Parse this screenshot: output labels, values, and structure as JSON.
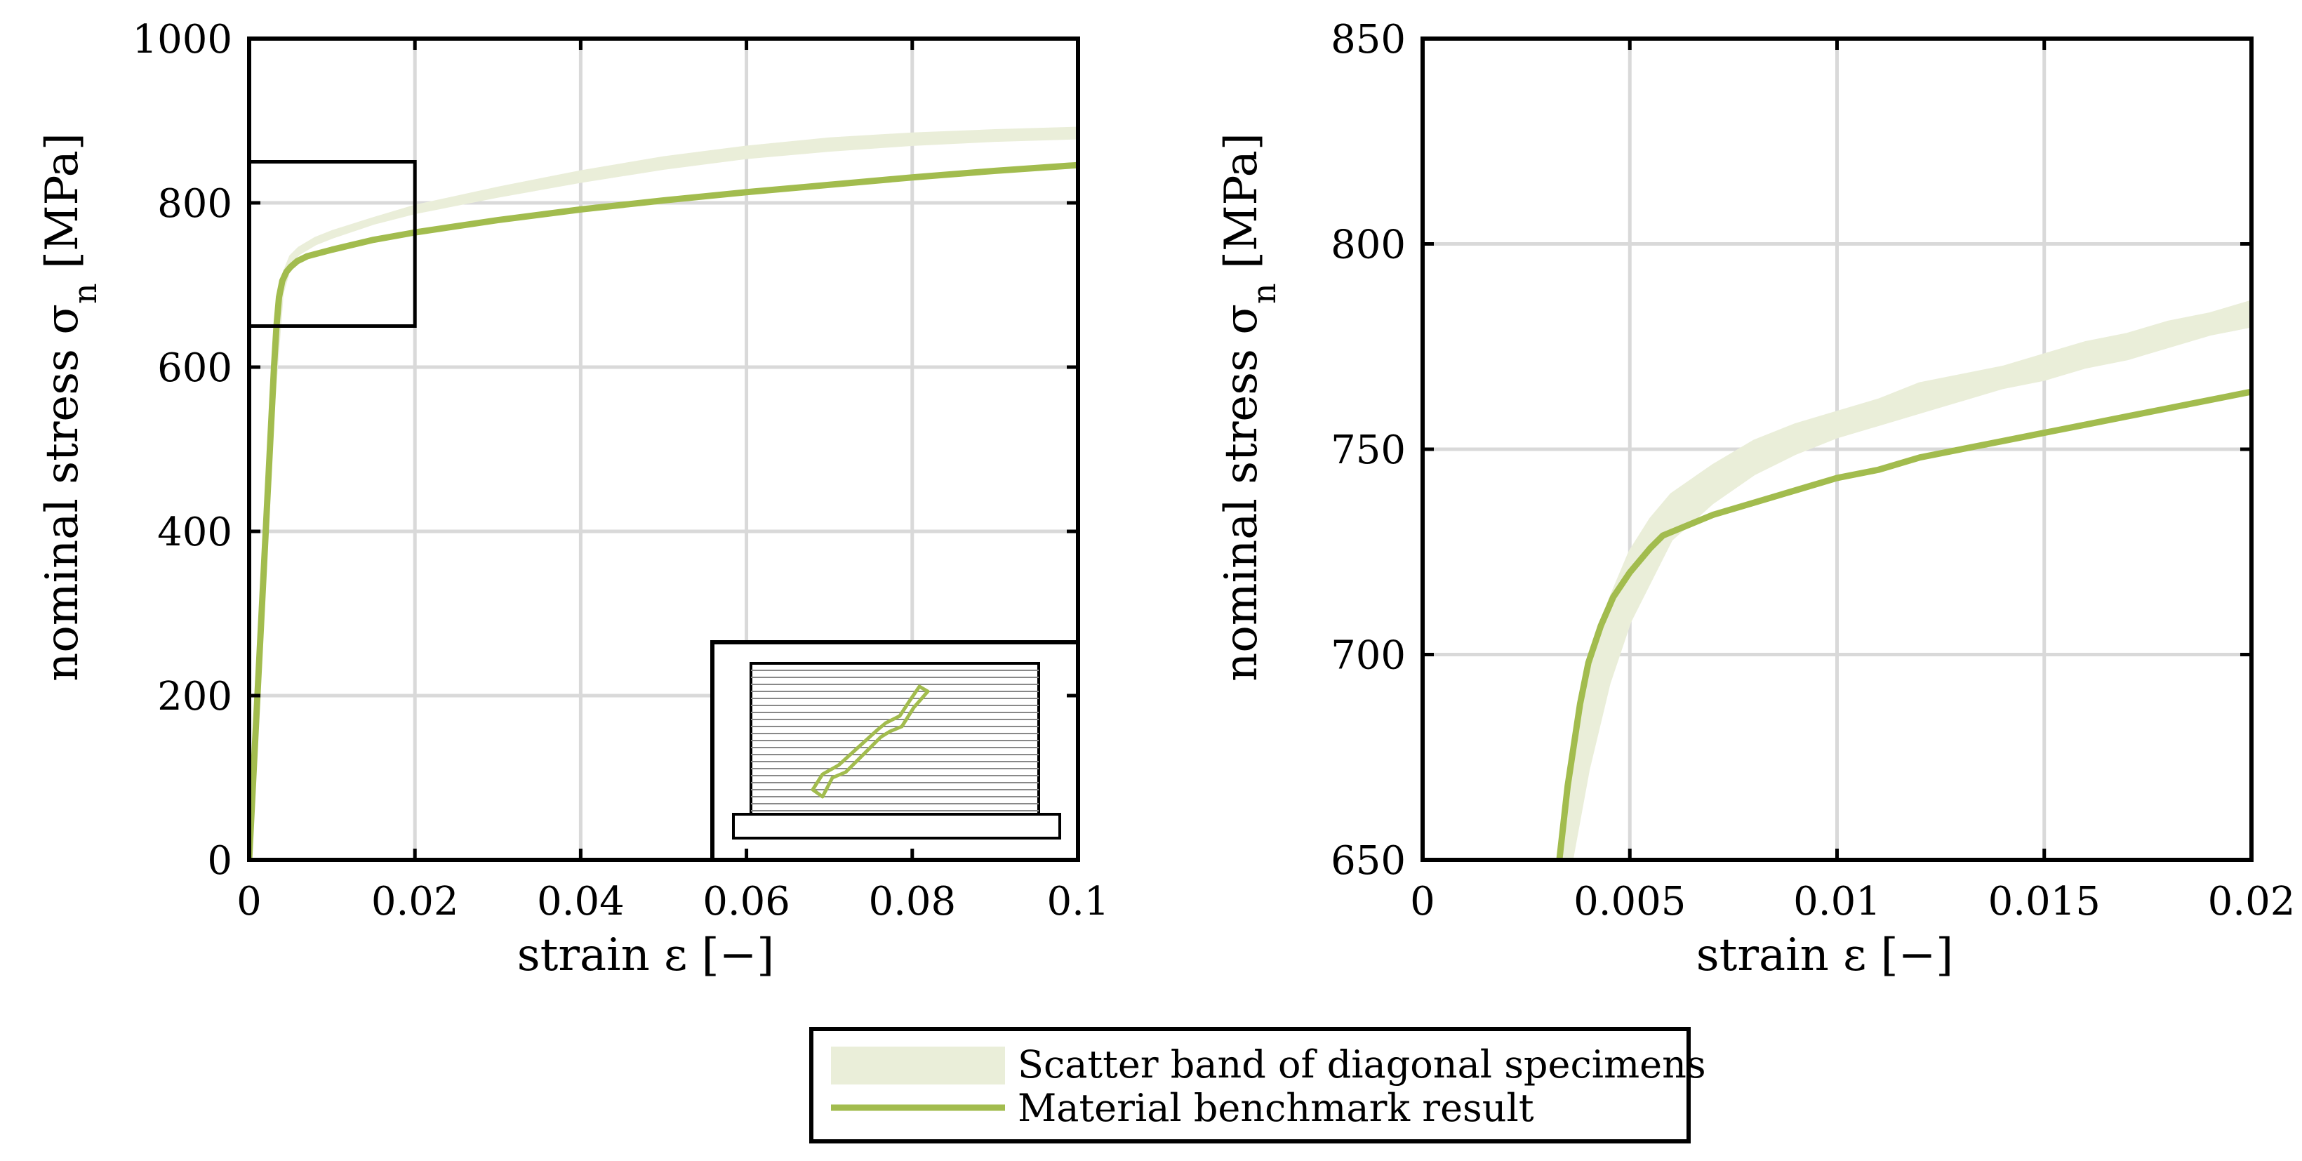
{
  "colors": {
    "series_line": "#a2bc4e",
    "scatter_band": "#eaeed9",
    "grid": "#d9d9d9",
    "axes": "#000000"
  },
  "chart_data": [
    {
      "type": "line",
      "xlabel": "strain ε [−]",
      "ylabel": "nominal stress σn [MPa]",
      "xlim": [
        0,
        0.1
      ],
      "ylim": [
        0,
        1000
      ],
      "xticks": [
        0,
        0.02,
        0.04,
        0.06,
        0.08,
        0.1
      ],
      "xtick_labels": [
        "0",
        "0.02",
        "0.04",
        "0.06",
        "0.08",
        "0.1"
      ],
      "yticks": [
        0,
        200,
        400,
        600,
        800,
        1000
      ],
      "ytick_labels": [
        "0",
        "200",
        "400",
        "600",
        "800",
        "1000"
      ],
      "grid": true,
      "zoom_box": {
        "x": [
          0,
          0.02
        ],
        "y": [
          650,
          850
        ]
      },
      "inset": "specimen-sketch",
      "series": [
        {
          "name": "Scatter band of diagonal specimens",
          "kind": "band",
          "x": [
            0,
            0.001,
            0.002,
            0.003,
            0.004,
            0.005,
            0.006,
            0.008,
            0.01,
            0.015,
            0.02,
            0.03,
            0.04,
            0.05,
            0.06,
            0.07,
            0.08,
            0.09,
            0.1
          ],
          "lower": [
            0,
            180,
            370,
            560,
            690,
            725,
            738,
            750,
            758,
            775,
            788,
            808,
            826,
            842,
            855,
            864,
            871,
            876,
            879
          ],
          "upper": [
            0,
            210,
            410,
            610,
            710,
            735,
            745,
            757,
            765,
            781,
            796,
            818,
            838,
            855,
            868,
            878,
            884,
            888,
            891
          ]
        },
        {
          "name": "Material benchmark result",
          "kind": "line",
          "x": [
            0,
            0.001,
            0.002,
            0.003,
            0.0033,
            0.0036,
            0.004,
            0.0045,
            0.005,
            0.0058,
            0.007,
            0.01,
            0.015,
            0.02,
            0.03,
            0.04,
            0.05,
            0.06,
            0.07,
            0.08,
            0.09,
            0.1
          ],
          "y": [
            0,
            200,
            400,
            600,
            650,
            685,
            705,
            716,
            722,
            729,
            735,
            743,
            755,
            764,
            779,
            792,
            803,
            813,
            822,
            831,
            839,
            846
          ]
        }
      ]
    },
    {
      "type": "line",
      "xlabel": "strain ε [−]",
      "ylabel": "nominal stress σn [MPa]",
      "xlim": [
        0,
        0.02
      ],
      "ylim": [
        650,
        850
      ],
      "xticks": [
        0,
        0.005,
        0.01,
        0.015,
        0.02
      ],
      "xtick_labels": [
        "0",
        "0.005",
        "0.01",
        "0.015",
        "0.02"
      ],
      "yticks": [
        650,
        700,
        750,
        800,
        850
      ],
      "ytick_labels": [
        "650",
        "700",
        "750",
        "800",
        "850"
      ],
      "grid": true,
      "series": [
        {
          "name": "Scatter band of diagonal specimens",
          "kind": "band",
          "x": [
            0.0034,
            0.0036,
            0.004,
            0.0045,
            0.005,
            0.0055,
            0.006,
            0.007,
            0.008,
            0.009,
            0.01,
            0.011,
            0.012,
            0.013,
            0.014,
            0.015,
            0.016,
            0.017,
            0.018,
            0.019,
            0.02
          ],
          "lower": [
            650,
            650,
            672,
            693,
            708,
            718,
            728,
            737,
            744,
            749,
            753,
            756,
            759,
            762,
            765,
            767,
            770,
            772,
            775,
            778,
            780
          ],
          "upper": [
            650,
            676,
            697,
            713,
            725,
            733,
            739,
            746,
            752,
            756,
            759,
            762,
            766,
            768,
            770,
            773,
            776,
            778,
            781,
            783,
            786
          ]
        },
        {
          "name": "Material benchmark result",
          "kind": "line",
          "x": [
            0.0033,
            0.0035,
            0.0038,
            0.004,
            0.0043,
            0.0046,
            0.005,
            0.0055,
            0.0058,
            0.007,
            0.008,
            0.009,
            0.01,
            0.011,
            0.012,
            0.013,
            0.014,
            0.015,
            0.016,
            0.017,
            0.018,
            0.019,
            0.02
          ],
          "y": [
            650,
            668,
            688,
            698,
            707,
            714,
            720,
            726,
            729,
            734,
            737,
            740,
            743,
            745,
            748,
            750,
            752,
            754,
            756,
            758,
            760,
            762,
            764
          ]
        }
      ]
    }
  ],
  "legend": {
    "placement": "bottom-center",
    "entries": [
      {
        "label": "Scatter band of diagonal specimens",
        "kind": "band"
      },
      {
        "label": "Material benchmark result",
        "kind": "line"
      }
    ]
  }
}
